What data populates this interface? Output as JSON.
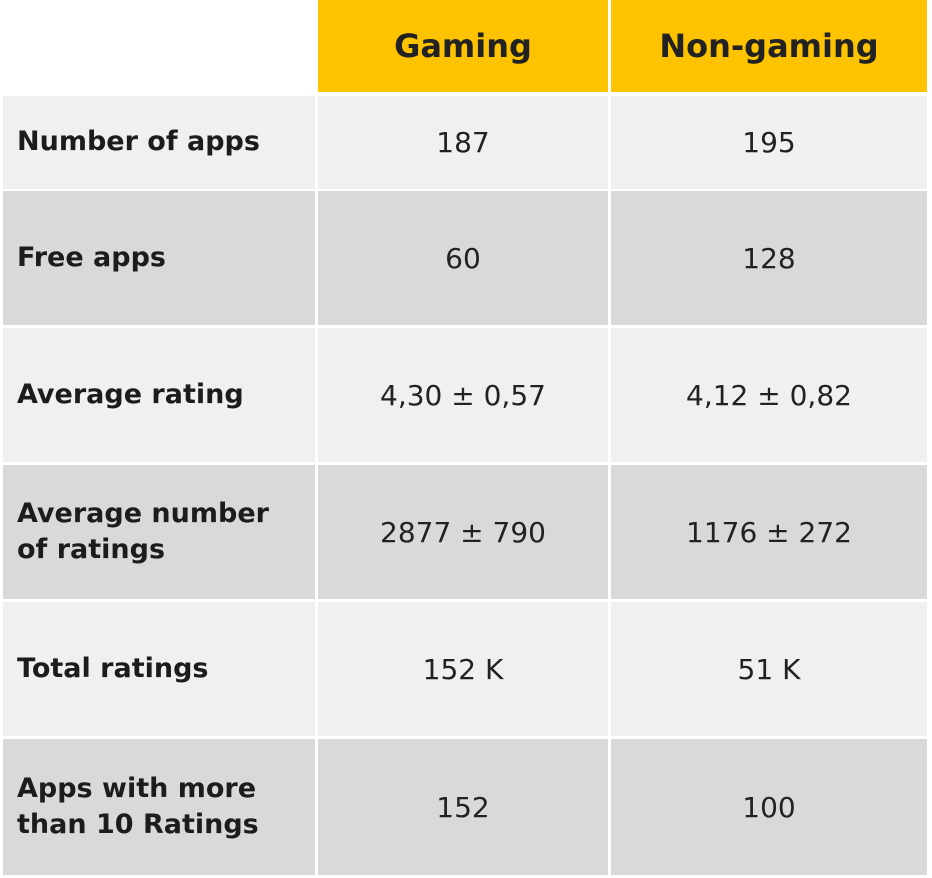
{
  "header": {
    "col1": "Gaming",
    "col2": "Non-gaming"
  },
  "rows": [
    {
      "label": "Number of apps",
      "gaming": "187",
      "non_gaming": "195"
    },
    {
      "label": "Free apps",
      "gaming": "60",
      "non_gaming": "128"
    },
    {
      "label": "Average rating",
      "gaming": "4,30 ± 0,57",
      "non_gaming": "4,12 ± 0,82"
    },
    {
      "label": "Average number of ratings",
      "gaming": "2877 ± 790",
      "non_gaming": "1176 ± 272"
    },
    {
      "label": "Total ratings",
      "gaming": "152 K",
      "non_gaming": "51 K"
    },
    {
      "label": "Apps with more than 10 Ratings",
      "gaming": "152",
      "non_gaming": "100"
    }
  ],
  "colors": {
    "header_bg": "#fdc300",
    "row_light": "#f0f0f0",
    "row_dark": "#d9d9d9"
  }
}
